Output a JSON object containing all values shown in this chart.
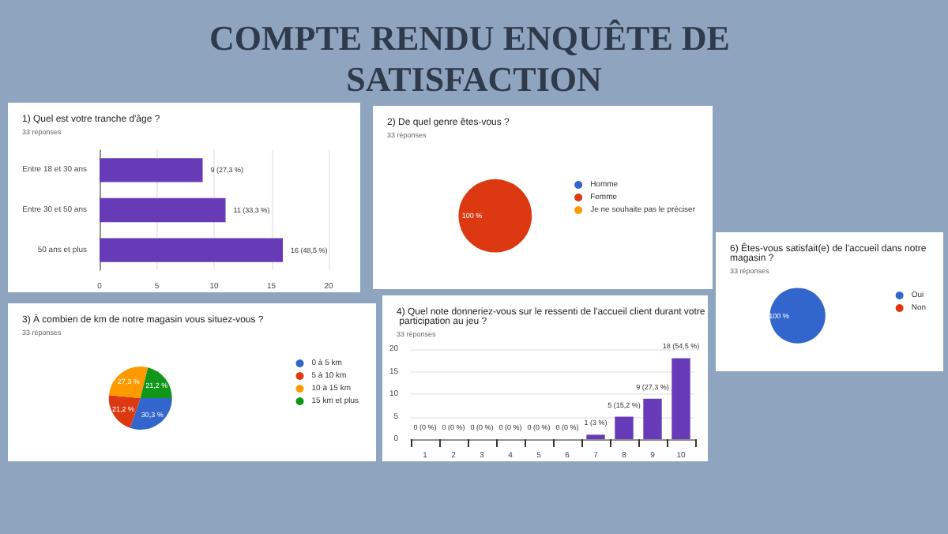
{
  "chart_data": [
    {
      "type": "other",
      "title": "COMPTE RENDU ENQUÊTE DE SATISFACTION"
    },
    {
      "type": "bar",
      "title": "1) Quel est votre tranche d'âge ?",
      "subtitle": "33 réponses",
      "orientation": "horizontal",
      "categories": [
        "Entre 18 et 30 ans",
        "Entre 30 et 50 ans",
        "50 ans et plus"
      ],
      "values": [
        9,
        11,
        16
      ],
      "color": "#673ab7",
      "value_labels": [
        "9 (27,3 %)",
        "11 (33,3 %)",
        "16 (48,5 %)"
      ],
      "xlim": [
        0,
        20
      ],
      "xticks": [
        0,
        5,
        10,
        15,
        20
      ],
      "grid": "x"
    },
    {
      "type": "pie",
      "title": "2) De quel genre êtes-vous ?",
      "subtitle": "33 réponses",
      "categories": [
        "Homme",
        "Femme",
        "Je ne souhaite pas le préciser"
      ],
      "values": [
        0,
        100,
        0
      ],
      "colors": [
        "#3366cc",
        "#dc3912",
        "#ff9900"
      ],
      "value_labels": [
        null,
        "100 %",
        null
      ],
      "legend": "right"
    },
    {
      "type": "pie",
      "title": "6) Êtes-vous satisfait(e) de l'accueil dans notre magasin ?",
      "subtitle": "33 réponses",
      "categories": [
        "Oui",
        "Non"
      ],
      "values": [
        100,
        0
      ],
      "colors": [
        "#3366cc",
        "#dc3912"
      ],
      "value_labels": [
        "100 %",
        null
      ],
      "legend": "right"
    },
    {
      "type": "pie",
      "title": "3) À combien de km de notre magasin vous situez-vous ?",
      "subtitle": "33 réponses",
      "categories": [
        "0 à 5 km",
        "5 à 10 km",
        "10 à 15 km",
        "15 km et plus"
      ],
      "values": [
        30.3,
        21.2,
        27.3,
        21.2
      ],
      "colors": [
        "#3366cc",
        "#dc3912",
        "#ff9900",
        "#109618"
      ],
      "value_labels": [
        "30,3 %",
        "21,2 %",
        "27,3 %",
        "21,2 %"
      ],
      "legend": "right"
    },
    {
      "type": "bar",
      "title": "4) Quel note donneriez-vous sur le ressenti de l'accueil client durant votre participation au jeu ?",
      "subtitle": "33 réponses",
      "categories": [
        "1",
        "2",
        "3",
        "4",
        "5",
        "6",
        "7",
        "8",
        "9",
        "10"
      ],
      "values": [
        0,
        0,
        0,
        0,
        0,
        0,
        1,
        5,
        9,
        18
      ],
      "color": "#673ab7",
      "value_labels": [
        "0 (0 %)",
        "0 (0 %)",
        "0 (0 %)",
        "0 (0 %)",
        "0 (0 %)",
        "0 (0 %)",
        "1 (3 %)",
        "5 (15,2 %)",
        "9 (27,3 %)",
        "18 (54,5 %)"
      ],
      "ylim": [
        0,
        20
      ],
      "yticks": [
        0,
        5,
        10,
        15,
        20
      ],
      "grid": "y"
    }
  ]
}
